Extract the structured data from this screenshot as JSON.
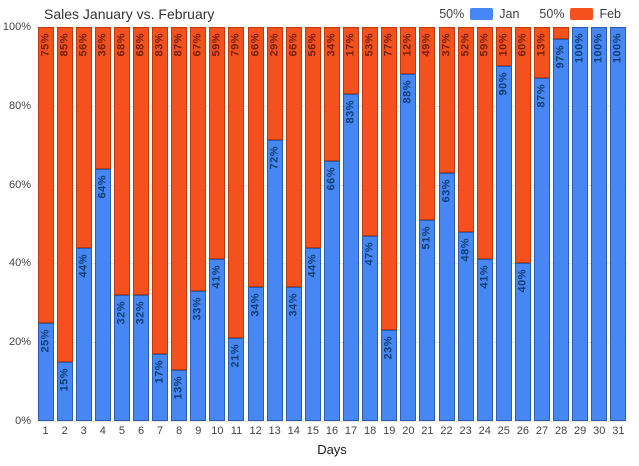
{
  "chart_data": {
    "type": "bar",
    "stacked": "percent",
    "title": "Sales January vs. February",
    "xlabel": "Days",
    "ylabel": "",
    "ylim": [
      0,
      100
    ],
    "grid": true,
    "legend_position": "top-right",
    "y_ticks": [
      "0%",
      "20%",
      "40%",
      "60%",
      "80%",
      "100%"
    ],
    "categories": [
      "1",
      "2",
      "3",
      "4",
      "5",
      "6",
      "7",
      "8",
      "9",
      "10",
      "11",
      "12",
      "13",
      "14",
      "15",
      "16",
      "17",
      "18",
      "19",
      "20",
      "21",
      "22",
      "23",
      "24",
      "25",
      "26",
      "27",
      "28",
      "29",
      "30",
      "31"
    ],
    "annotation_suffix": "%",
    "min_annotation_value": 10,
    "series": [
      {
        "name": "Jan",
        "legend_value": "50%",
        "color": "#4687f3",
        "border_color": "#2a5db0",
        "annotation_color": "#123f73",
        "values": [
          25,
          15,
          44,
          64,
          32,
          32,
          17,
          13,
          33,
          41,
          21,
          34,
          72,
          34,
          44,
          66,
          83,
          47,
          23,
          88,
          51,
          63,
          48,
          41,
          90,
          40,
          87,
          97,
          100,
          100,
          100
        ]
      },
      {
        "name": "Feb",
        "legend_value": "50%",
        "color": "#f4511e",
        "border_color": "#bb3a0e",
        "annotation_color": "#73230c",
        "values": [
          75,
          85,
          56,
          36,
          68,
          68,
          83,
          87,
          67,
          59,
          79,
          66,
          29,
          66,
          56,
          34,
          17,
          53,
          77,
          12,
          49,
          37,
          52,
          59,
          10,
          60,
          13,
          3,
          0,
          0,
          0
        ]
      }
    ]
  }
}
